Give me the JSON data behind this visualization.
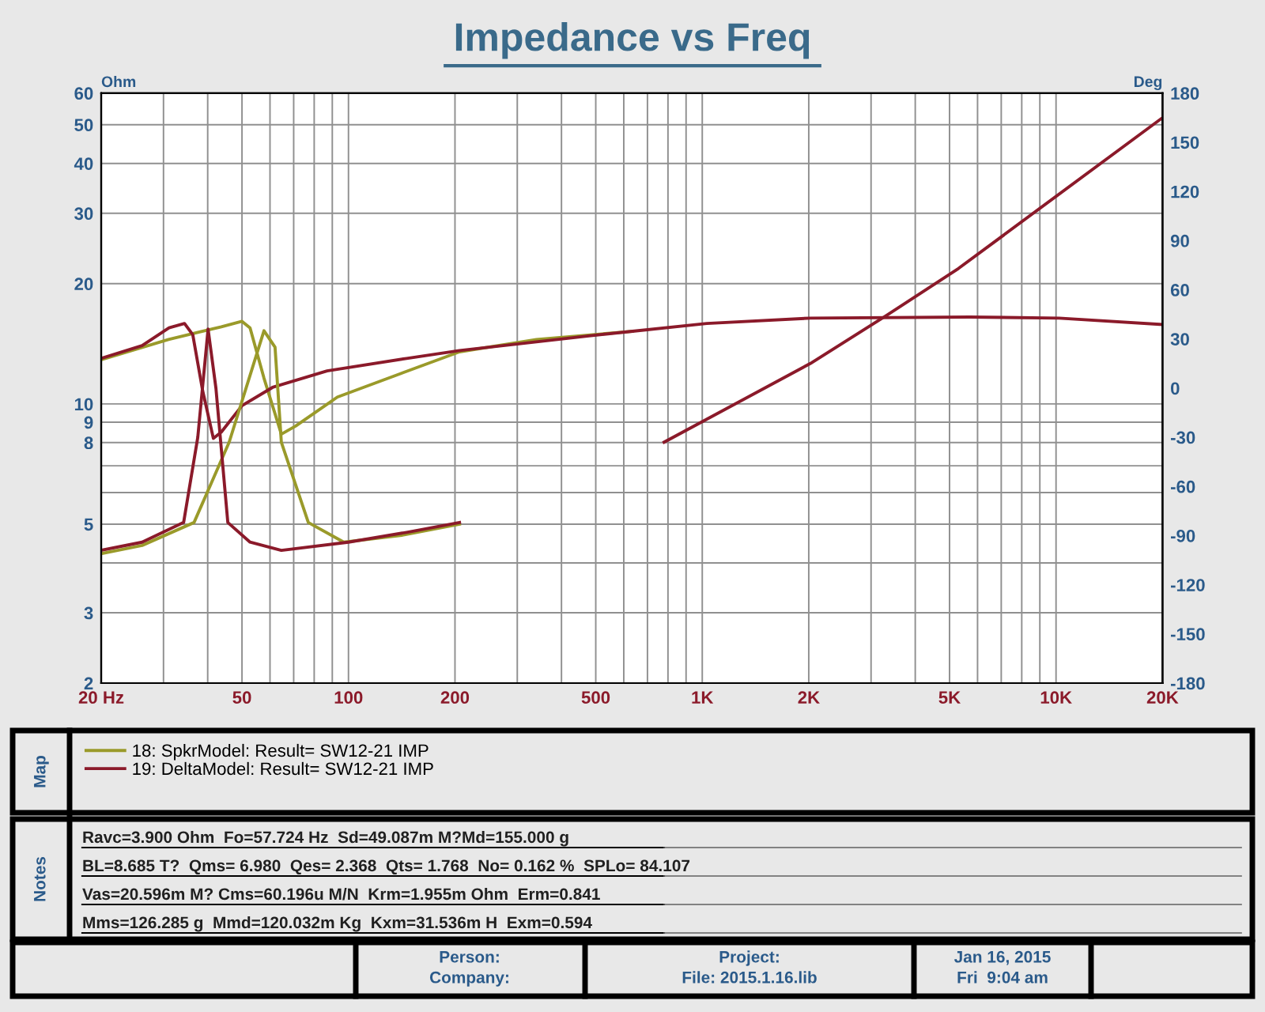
{
  "chart_data": {
    "type": "line",
    "title": "Impedance vs Freq",
    "ylabel": "Ohm",
    "y2label": "Deg",
    "log": "xy",
    "grid": true,
    "legend": "bottom",
    "line_style": "solid",
    "marker": "none",
    "xlim": [
      20,
      20000
    ],
    "xticks": [
      {
        "value": 20,
        "label": "20 Hz"
      },
      {
        "value": 30,
        "label": null
      },
      {
        "value": 40,
        "label": null
      },
      50,
      {
        "value": 60,
        "label": null
      },
      {
        "value": 70,
        "label": null
      },
      {
        "value": 80,
        "label": null
      },
      {
        "value": 90,
        "label": null
      },
      100,
      200,
      {
        "value": 300,
        "label": null
      },
      {
        "value": 400,
        "label": null
      },
      500,
      {
        "value": 600,
        "label": null
      },
      {
        "value": 700,
        "label": null
      },
      {
        "value": 800,
        "label": null
      },
      {
        "value": 900,
        "label": null
      },
      {
        "value": 1000,
        "label": "1K"
      },
      {
        "value": 2000,
        "label": "2K"
      },
      {
        "value": 3000,
        "label": null
      },
      {
        "value": 4000,
        "label": null
      },
      {
        "value": 5000,
        "label": "5K"
      },
      {
        "value": 6000,
        "label": null
      },
      {
        "value": 7000,
        "label": null
      },
      {
        "value": 8000,
        "label": null
      },
      {
        "value": 9000,
        "label": null
      },
      {
        "value": 10000,
        "label": "10K"
      },
      {
        "value": 20000,
        "label": "20K"
      }
    ],
    "ylim": [
      2,
      60
    ],
    "yticks": [
      2,
      3,
      {
        "value": 4,
        "label": null
      },
      5,
      {
        "value": 6,
        "label": null
      },
      {
        "value": 7,
        "label": null
      },
      8,
      9,
      10,
      20,
      30,
      40,
      50,
      60
    ],
    "y2lim": [
      -180,
      180
    ],
    "y2ticks": [
      -180,
      -150,
      -120,
      -90,
      -60,
      -30,
      0,
      30,
      60,
      90,
      120,
      150,
      180
    ],
    "series": [
      {
        "name": "18: SpkrModel: Result= SW12-21 IMP",
        "color": "#9a9a2a",
        "x": [
          20,
          31,
          43.7,
          50,
          52.7,
          57.7,
          64.6,
          70.9,
          93,
          140,
          206,
          340,
          635
        ],
        "values": [
          12.9,
          14.5,
          15.6,
          16.1,
          15.5,
          11.6,
          8.4,
          8.8,
          10.4,
          11.9,
          13.5,
          14.5,
          15.2
        ]
      },
      {
        "name": "19: DeltaModel: Result= SW12-21 IMP",
        "color": "#8b1a2a",
        "x": [
          20,
          26.1,
          31.1,
          34.4,
          36.3,
          38.7,
          41.5,
          43.7,
          50,
          61,
          87,
          146,
          206,
          478,
          635,
          1030,
          2020,
          5700,
          10200,
          20000
        ],
        "values": [
          13.0,
          14.0,
          15.5,
          15.9,
          14.9,
          10.8,
          8.2,
          8.5,
          9.9,
          11.0,
          12.1,
          13.0,
          13.6,
          14.8,
          15.2,
          15.9,
          16.4,
          16.5,
          16.4,
          15.8
        ]
      },
      {
        "color": "#9a9a2a",
        "axis": "y2",
        "x": [
          20,
          26.1,
          36.6,
          46,
          57.7,
          62,
          64.6,
          77,
          97,
          140,
          206
        ],
        "values": [
          -101,
          -96,
          -82,
          -33,
          35,
          25,
          -33,
          -82,
          -94,
          -90,
          -83
        ]
      },
      {
        "color": "#8b1a2a",
        "axis": "y2",
        "x": [
          20,
          26.1,
          34.2,
          37.5,
          40.1,
          42.2,
          45.6,
          52.7,
          64.6,
          100,
          146,
          206,
          450,
          780,
          2020,
          3300,
          5300,
          20000
        ],
        "values": [
          -99,
          -94,
          -82,
          -30,
          36,
          0,
          -82,
          -94,
          -99,
          -94,
          -88,
          -82,
          null,
          -33,
          15,
          44,
          73,
          165
        ]
      }
    ],
    "annotations": [
      "Map",
      "Notes",
      "Ravc=3.900 Ohm  Fo=57.724 Hz  Sd=49.087m M?Md=155.000 g",
      "BL=8.685 T?  Qms= 6.980  Qes= 2.368  Qts= 1.768  No= 0.162 %  SPLo= 84.107",
      "Vas=20.596m M? Cms=60.196u M/N  Krm=1.955m Ohm  Erm=0.841",
      "Mms=126.285 g  Mmd=120.032m Kg  Kxm=31.536m H  Exm=0.594",
      "Person:",
      "Company:",
      "Project:",
      "File: 2015.1.16.lib",
      "Jan 16, 2015",
      "Fri  9:04 am"
    ]
  }
}
